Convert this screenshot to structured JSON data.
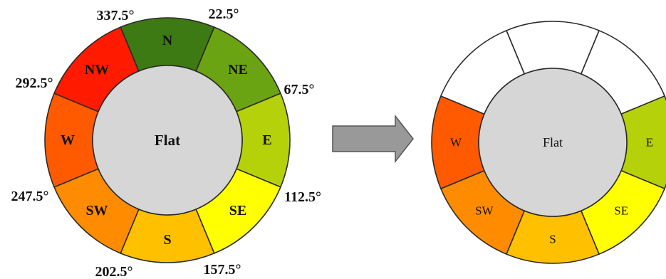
{
  "left_wheel": {
    "center_label": "Flat",
    "sectors": [
      {
        "label": "N",
        "color": "#3d7a14"
      },
      {
        "label": "NE",
        "color": "#6aa412"
      },
      {
        "label": "E",
        "color": "#b5d10a"
      },
      {
        "label": "SE",
        "color": "#ffff00"
      },
      {
        "label": "S",
        "color": "#ffc000"
      },
      {
        "label": "SW",
        "color": "#ff8c00"
      },
      {
        "label": "W",
        "color": "#ff5a00"
      },
      {
        "label": "NW",
        "color": "#ff1a00"
      }
    ],
    "degree_labels": [
      "337.5°",
      "22.5°",
      "67.5°",
      "112.5°",
      "157.5°",
      "202.5°",
      "247.5°",
      "292.5°"
    ],
    "inner_color": "#d6d6d6"
  },
  "arrow": {
    "color": "#999999",
    "stroke": "#555555"
  },
  "right_wheel": {
    "center_label": "Flat",
    "sectors": [
      {
        "label": "",
        "color": "#ffffff"
      },
      {
        "label": "",
        "color": "#ffffff"
      },
      {
        "label": "E",
        "color": "#b5d10a"
      },
      {
        "label": "SE",
        "color": "#ffff00"
      },
      {
        "label": "S",
        "color": "#ffc000"
      },
      {
        "label": "SW",
        "color": "#ff8c00"
      },
      {
        "label": "W",
        "color": "#ff5a00"
      },
      {
        "label": "",
        "color": "#ffffff"
      }
    ],
    "inner_color": "#d6d6d6"
  }
}
